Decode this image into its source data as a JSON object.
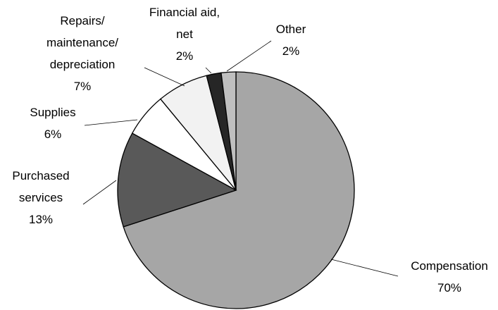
{
  "chart_data": {
    "type": "pie",
    "categories": [
      "Compensation",
      "Purchased services",
      "Supplies",
      "Repairs/ maintenance/ depreciation",
      "Financial aid, net",
      "Other"
    ],
    "values": [
      70,
      13,
      6,
      7,
      2,
      2
    ],
    "value_labels": [
      "70%",
      "13%",
      "6%",
      "7%",
      "2%",
      "2%"
    ],
    "colors": [
      "#a6a6a6",
      "#595959",
      "#ffffff",
      "#f2f2f2",
      "#262626",
      "#bfbfbf"
    ]
  }
}
